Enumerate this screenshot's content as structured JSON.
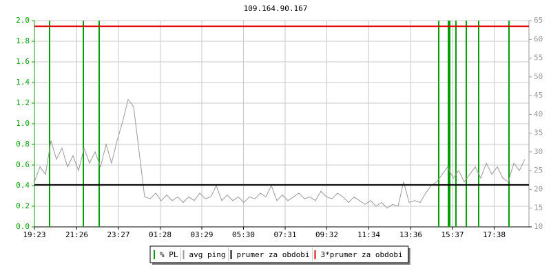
{
  "chart_data": {
    "type": "line",
    "title": "109.164.90.167",
    "xlim": [
      0,
      1436
    ],
    "xticks": [
      {
        "value": 0,
        "label": "19:23"
      },
      {
        "value": 123,
        "label": "21:26"
      },
      {
        "value": 244,
        "label": "23:27"
      },
      {
        "value": 365,
        "label": "01:28"
      },
      {
        "value": 486,
        "label": "03:29"
      },
      {
        "value": 607,
        "label": "05:30"
      },
      {
        "value": 728,
        "label": "07:31"
      },
      {
        "value": 849,
        "label": "09:32"
      },
      {
        "value": 971,
        "label": "11:34"
      },
      {
        "value": 1093,
        "label": "13:36"
      },
      {
        "value": 1214,
        "label": "15:37"
      },
      {
        "value": 1335,
        "label": "17:38"
      }
    ],
    "ylim": [
      0,
      2
    ],
    "yticks": [
      {
        "value": 0,
        "label": "0.0"
      },
      0.2,
      0.4,
      0.6,
      0.8,
      {
        "value": 1,
        "label": "1.0"
      },
      1.2,
      1.4,
      1.6,
      1.8,
      {
        "value": 2,
        "label": "2.0"
      }
    ],
    "y2lim": [
      10,
      65
    ],
    "y2ticks": [
      10,
      15,
      20,
      25,
      30,
      35,
      40,
      45,
      50,
      55,
      60,
      65
    ],
    "grid": true,
    "series": [
      {
        "name": "% PL",
        "type": "bar",
        "color": "#00a000",
        "x": [
          44,
          142,
          188,
          1174,
          1202,
          1206,
          1224,
          1254,
          1290,
          1378
        ],
        "values": [
          2,
          2,
          2,
          2,
          2,
          2,
          2,
          2,
          2,
          2
        ]
      },
      {
        "name": "avg ping",
        "type": "line",
        "axis": "y2",
        "color": "#999999",
        "x": [
          0,
          16,
          32,
          48,
          64,
          80,
          96,
          112,
          128,
          144,
          160,
          176,
          192,
          208,
          224,
          240,
          256,
          272,
          288,
          304,
          320,
          336,
          352,
          368,
          384,
          400,
          416,
          432,
          448,
          464,
          480,
          496,
          512,
          528,
          544,
          560,
          576,
          592,
          608,
          624,
          640,
          656,
          672,
          688,
          704,
          720,
          736,
          752,
          768,
          784,
          800,
          816,
          832,
          848,
          864,
          880,
          896,
          912,
          928,
          944,
          960,
          976,
          992,
          1008,
          1024,
          1040,
          1056,
          1072,
          1088,
          1104,
          1120,
          1136,
          1152,
          1168,
          1184,
          1200,
          1216,
          1232,
          1248,
          1264,
          1280,
          1296,
          1312,
          1328,
          1344,
          1360,
          1376,
          1392,
          1408,
          1424
        ],
        "values": [
          22,
          26,
          24,
          33,
          28,
          31,
          26,
          29,
          25,
          31,
          27,
          30,
          26,
          32,
          27,
          33,
          38,
          44,
          42,
          30,
          18,
          17.5,
          19,
          17,
          18.5,
          17,
          18,
          16.5,
          18,
          17,
          19,
          17.5,
          18,
          21,
          17,
          18.5,
          17,
          18,
          16.5,
          18,
          17.5,
          19,
          18,
          21,
          17,
          18.5,
          17,
          18,
          19,
          17.5,
          18,
          17,
          19.5,
          18,
          17.5,
          19,
          18,
          16.5,
          18,
          17,
          16,
          17,
          15.5,
          16.5,
          15,
          16,
          15.5,
          22,
          16.5,
          17,
          16.5,
          19,
          21,
          22,
          24,
          26,
          23,
          25,
          22,
          24,
          26,
          23,
          27,
          24,
          26,
          23,
          22,
          27,
          25,
          28
        ]
      },
      {
        "name": "prumer za obdobi",
        "type": "line",
        "axis": "y2",
        "color": "#000000",
        "x": [
          0,
          1436
        ],
        "values": [
          21.2,
          21.2
        ]
      },
      {
        "name": "3*prumer za obdobi",
        "type": "line",
        "axis": "y2",
        "color": "#e00000",
        "x": [
          0,
          1436
        ],
        "values": [
          63.5,
          63.5
        ]
      }
    ]
  }
}
